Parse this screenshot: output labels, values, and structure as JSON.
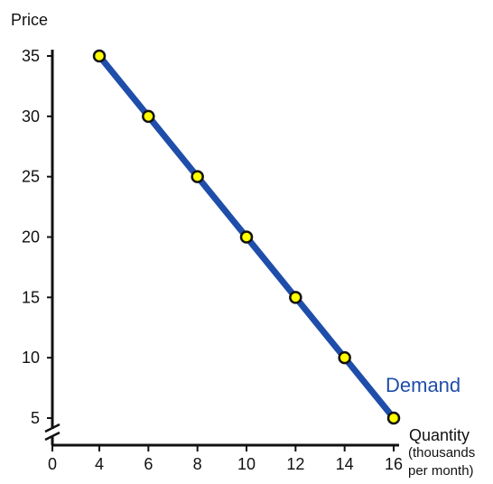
{
  "chart_data": {
    "type": "line",
    "title": "",
    "ylabel": "Price",
    "xlabel": "Quantity",
    "xlabel_sub": [
      "(thousands",
      "per month)"
    ],
    "x": [
      4,
      6,
      8,
      10,
      12,
      14,
      16
    ],
    "series": [
      {
        "name": "Demand",
        "values": [
          35,
          30,
          25,
          20,
          15,
          10,
          5
        ]
      }
    ],
    "xticks": [
      "0",
      "4",
      "6",
      "8",
      "10",
      "12",
      "14",
      "16"
    ],
    "yticks": [
      "5",
      "10",
      "15",
      "20",
      "25",
      "30",
      "35"
    ],
    "xlim": [
      0,
      16
    ],
    "ylim": [
      5,
      35
    ],
    "axis_break": true,
    "grid": false,
    "colors": {
      "line": "#1f4eaa",
      "marker_fill": "#ffff00",
      "marker_stroke": "#111111",
      "label": "#1f4eaa"
    }
  }
}
